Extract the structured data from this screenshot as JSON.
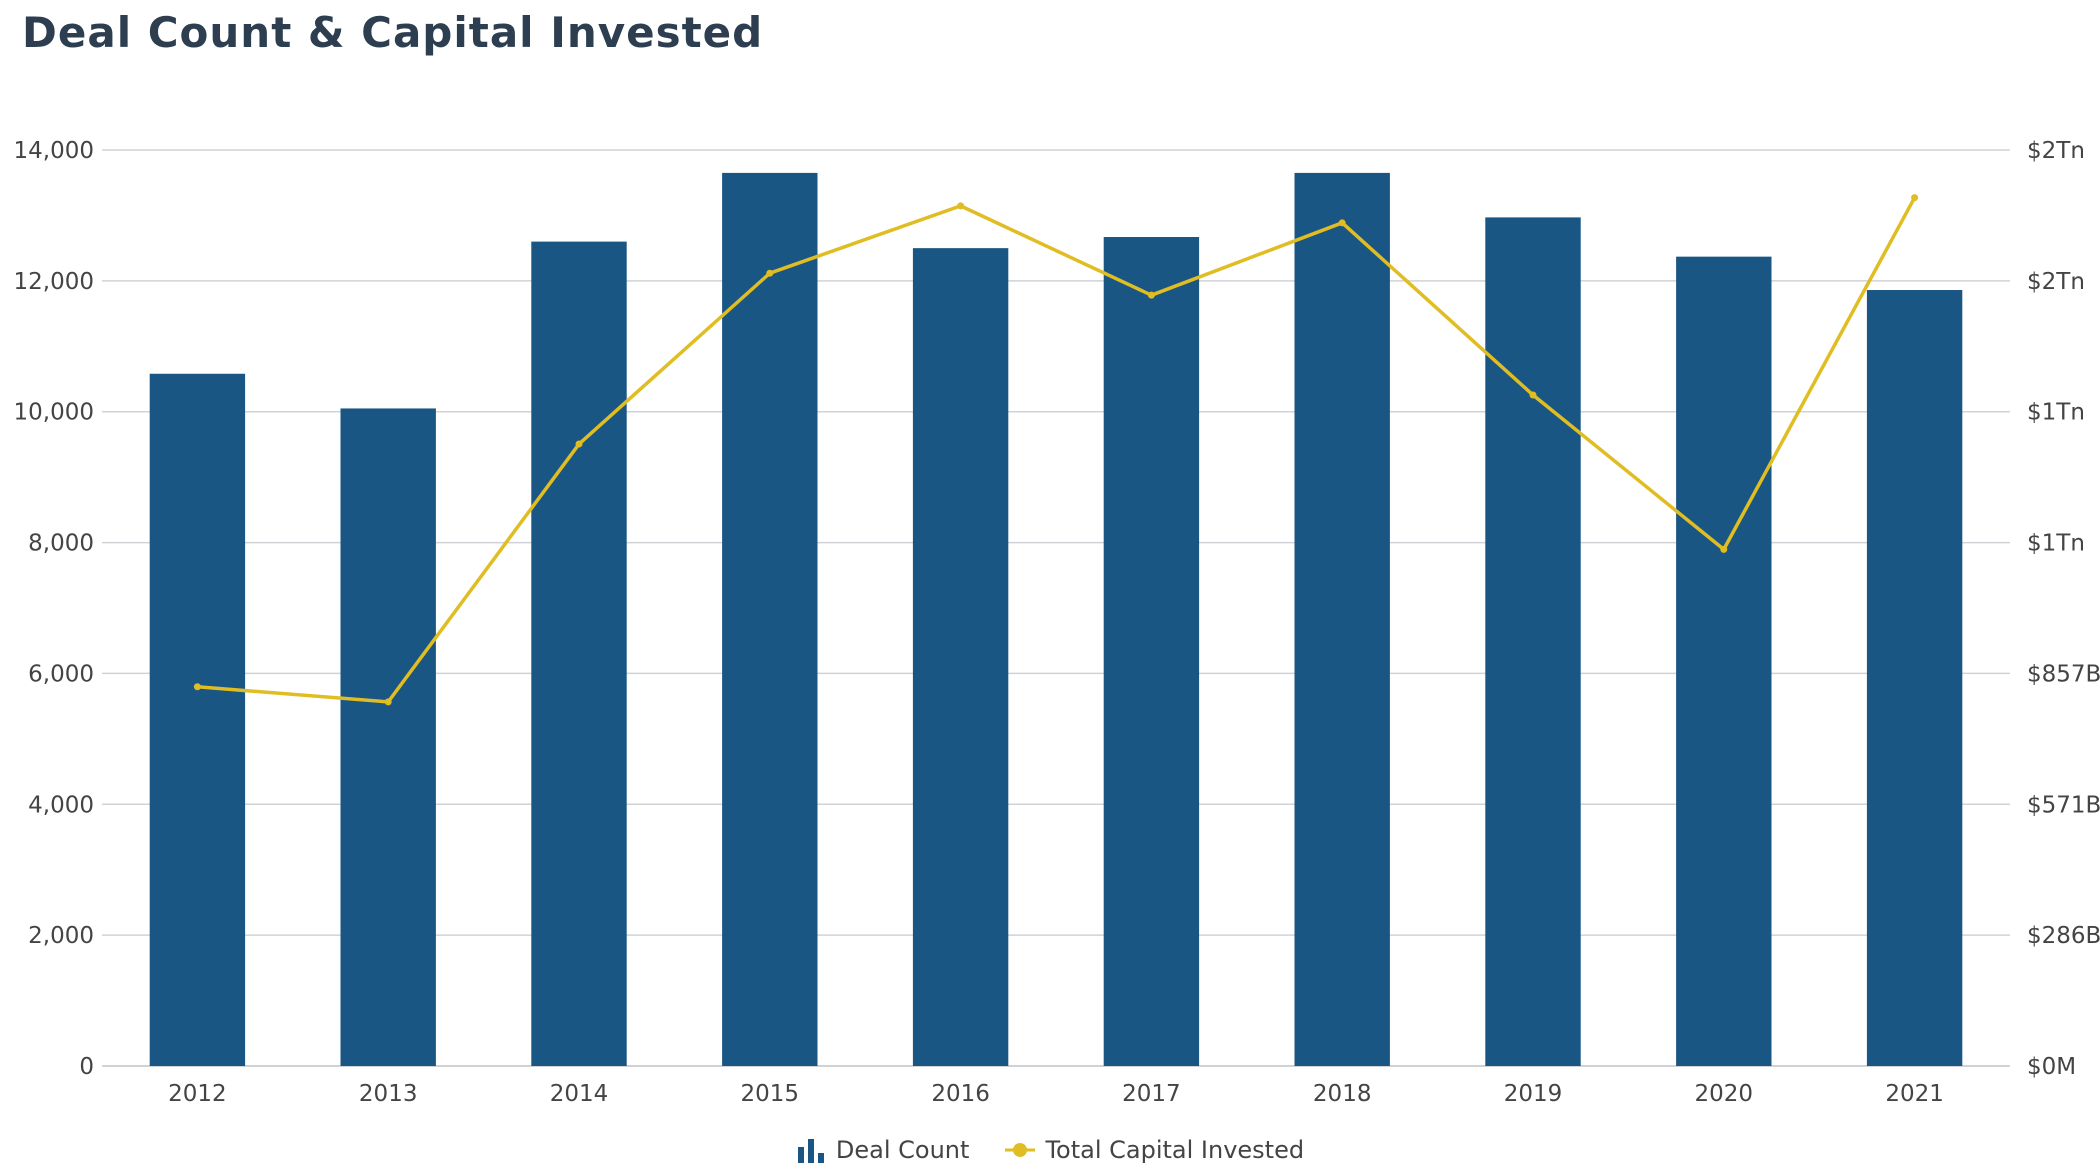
{
  "title": "Deal Count & Capital Invested",
  "colors": {
    "bar": "#1a5683",
    "line": "#e0bd22",
    "grid": "#cfd3d7",
    "text": "#444444"
  },
  "legend": {
    "bar_label": "Deal Count",
    "line_label": "Total Capital Invested"
  },
  "chart_data": {
    "type": "bar",
    "categories": [
      "2012",
      "2013",
      "2014",
      "2015",
      "2016",
      "2017",
      "2018",
      "2019",
      "2020",
      "2021"
    ],
    "series": [
      {
        "name": "Deal Count",
        "type": "bar",
        "axis": "left",
        "values": [
          10580,
          10050,
          12600,
          13650,
          12500,
          12670,
          13650,
          12970,
          12370,
          11860
        ]
      },
      {
        "name": "Total Capital Invested",
        "type": "line",
        "axis": "right",
        "unit": "$B",
        "values": [
          828,
          795,
          1358,
          1731,
          1878,
          1683,
          1841,
          1465,
          1128,
          1896
        ]
      }
    ],
    "y_left": {
      "range": [
        0,
        14000
      ],
      "ticks": [
        "0",
        "2,000",
        "4,000",
        "6,000",
        "8,000",
        "10,000",
        "12,000",
        "14,000"
      ]
    },
    "y_right": {
      "range": [
        0,
        2000
      ],
      "ticks": [
        "$0M",
        "$286B",
        "$571B",
        "$857B",
        "$1Tn",
        "$1Tn",
        "$2Tn",
        "$2Tn"
      ]
    },
    "grid": true,
    "legend_position": "bottom"
  }
}
